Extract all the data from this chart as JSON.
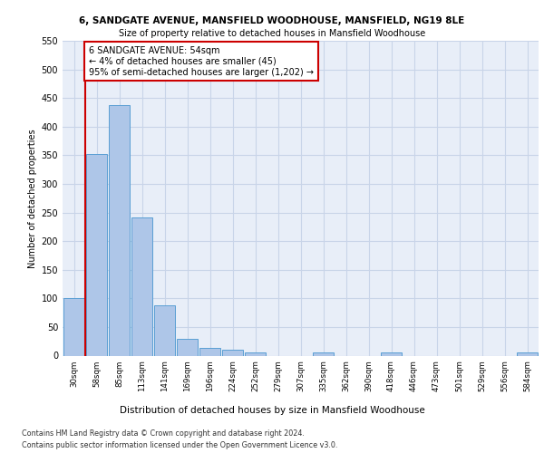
{
  "title1": "6, SANDGATE AVENUE, MANSFIELD WOODHOUSE, MANSFIELD, NG19 8LE",
  "title2": "Size of property relative to detached houses in Mansfield Woodhouse",
  "xlabel": "Distribution of detached houses by size in Mansfield Woodhouse",
  "ylabel": "Number of detached properties",
  "footer1": "Contains HM Land Registry data © Crown copyright and database right 2024.",
  "footer2": "Contains public sector information licensed under the Open Government Licence v3.0.",
  "bin_labels": [
    "30sqm",
    "58sqm",
    "85sqm",
    "113sqm",
    "141sqm",
    "169sqm",
    "196sqm",
    "224sqm",
    "252sqm",
    "279sqm",
    "307sqm",
    "335sqm",
    "362sqm",
    "390sqm",
    "418sqm",
    "446sqm",
    "473sqm",
    "501sqm",
    "529sqm",
    "556sqm",
    "584sqm"
  ],
  "bar_values": [
    100,
    352,
    438,
    241,
    88,
    29,
    14,
    10,
    6,
    0,
    0,
    6,
    0,
    0,
    5,
    0,
    0,
    0,
    0,
    0,
    5
  ],
  "bar_color": "#aec6e8",
  "bar_edge_color": "#5a9fd4",
  "marker_line_color": "#cc0000",
  "annotation_text": "6 SANDGATE AVENUE: 54sqm\n← 4% of detached houses are smaller (45)\n95% of semi-detached houses are larger (1,202) →",
  "annotation_box_color": "#ffffff",
  "annotation_box_edge": "#cc0000",
  "ylim": [
    0,
    550
  ],
  "yticks": [
    0,
    50,
    100,
    150,
    200,
    250,
    300,
    350,
    400,
    450,
    500,
    550
  ],
  "grid_color": "#c8d4e8",
  "bg_color": "#e8eef8"
}
